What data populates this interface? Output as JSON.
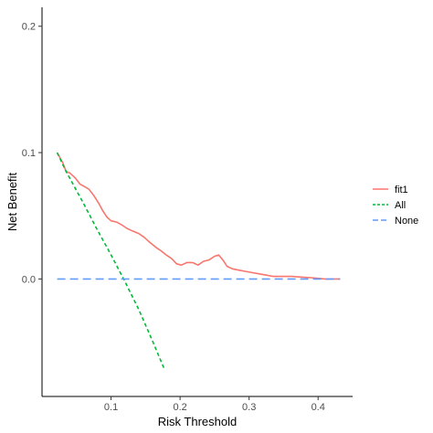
{
  "chart_data": {
    "type": "line",
    "xlabel": "Risk Threshold",
    "ylabel": "Net Benefit",
    "xlim": [
      0.0,
      0.45
    ],
    "ylim": [
      -0.093,
      0.215
    ],
    "x_ticks": [
      0.1,
      0.2,
      0.3,
      0.4
    ],
    "x_tick_labels": [
      "0.1",
      "0.2",
      "0.3",
      "0.4"
    ],
    "y_ticks": [
      0.0,
      0.1,
      0.2
    ],
    "y_tick_labels": [
      "0.0",
      "0.1",
      "0.2"
    ],
    "grid": false,
    "legend_position": "right",
    "series": [
      {
        "name": "fit1",
        "color": "#F8766D",
        "dash": "solid",
        "points": [
          [
            0.022,
            0.1
          ],
          [
            0.03,
            0.092
          ],
          [
            0.035,
            0.085
          ],
          [
            0.04,
            0.084
          ],
          [
            0.048,
            0.08
          ],
          [
            0.055,
            0.075
          ],
          [
            0.062,
            0.073
          ],
          [
            0.068,
            0.071
          ],
          [
            0.075,
            0.066
          ],
          [
            0.082,
            0.06
          ],
          [
            0.088,
            0.054
          ],
          [
            0.094,
            0.049
          ],
          [
            0.1,
            0.046
          ],
          [
            0.108,
            0.045
          ],
          [
            0.115,
            0.043
          ],
          [
            0.123,
            0.04
          ],
          [
            0.131,
            0.038
          ],
          [
            0.14,
            0.036
          ],
          [
            0.148,
            0.033
          ],
          [
            0.156,
            0.029
          ],
          [
            0.165,
            0.025
          ],
          [
            0.173,
            0.022
          ],
          [
            0.18,
            0.019
          ],
          [
            0.188,
            0.016
          ],
          [
            0.195,
            0.012
          ],
          [
            0.202,
            0.011
          ],
          [
            0.21,
            0.013
          ],
          [
            0.218,
            0.013
          ],
          [
            0.226,
            0.011
          ],
          [
            0.234,
            0.014
          ],
          [
            0.242,
            0.015
          ],
          [
            0.25,
            0.018
          ],
          [
            0.256,
            0.019
          ],
          [
            0.262,
            0.015
          ],
          [
            0.268,
            0.01
          ],
          [
            0.276,
            0.008
          ],
          [
            0.285,
            0.007
          ],
          [
            0.295,
            0.006
          ],
          [
            0.305,
            0.005
          ],
          [
            0.315,
            0.004
          ],
          [
            0.325,
            0.003
          ],
          [
            0.335,
            0.002
          ],
          [
            0.35,
            0.002
          ],
          [
            0.362,
            0.002
          ],
          [
            0.375,
            0.0015
          ],
          [
            0.39,
            0.001
          ],
          [
            0.4,
            0.0005
          ],
          [
            0.41,
            0.0
          ],
          [
            0.432,
            0.0
          ]
        ]
      },
      {
        "name": "All",
        "color": "#00BA38",
        "dash": "dotted",
        "points": [
          [
            0.022,
            0.1
          ],
          [
            0.035,
            0.085
          ],
          [
            0.06,
            0.06
          ],
          [
            0.08,
            0.039
          ],
          [
            0.1,
            0.019
          ],
          [
            0.12,
            -0.002
          ],
          [
            0.14,
            -0.024
          ],
          [
            0.16,
            -0.049
          ],
          [
            0.177,
            -0.071
          ]
        ]
      },
      {
        "name": "None",
        "color": "#619CFF",
        "dash": "dashed",
        "points": [
          [
            0.022,
            0.0
          ],
          [
            0.432,
            0.0
          ]
        ]
      }
    ]
  }
}
